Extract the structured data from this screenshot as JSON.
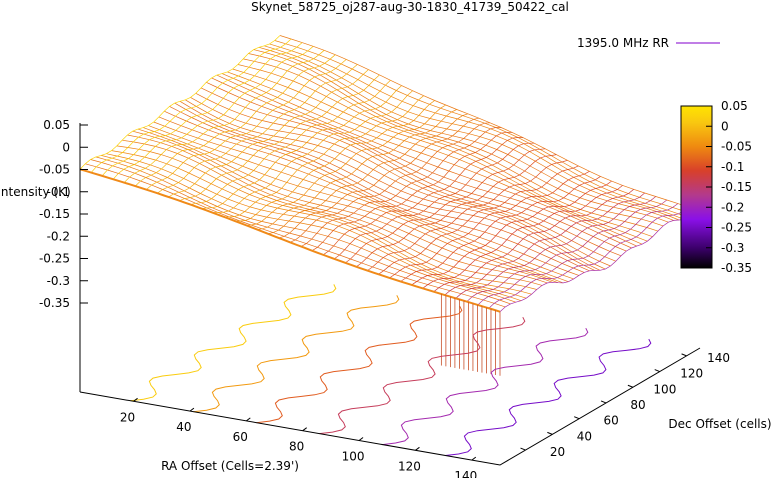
{
  "chart_data": {
    "type": "surface",
    "title": "Skynet_58725_oj287-aug-30-1830_41739_50422_cal",
    "zlabel": "Intensity (K)",
    "xlabel": "RA Offset (Cells=2.39')",
    "ylabel": "Dec Offset (cells)",
    "legend": {
      "label": "1395.0 MHz RR",
      "color": "#9b30d8",
      "placement": "top-right"
    },
    "z_ticks": [
      "0.05",
      "0",
      "-0.05",
      "-0.1",
      "-0.15",
      "-0.2",
      "-0.25",
      "-0.3",
      "-0.35"
    ],
    "x_ticks": [
      "20",
      "40",
      "60",
      "80",
      "100",
      "120",
      "140"
    ],
    "y_ticks": [
      "20",
      "40",
      "60",
      "80",
      "100",
      "120",
      "140"
    ],
    "colorbar": {
      "ticks": [
        "0.05",
        "0",
        "-0.05",
        "-0.1",
        "-0.15",
        "-0.2",
        "-0.25",
        "-0.3",
        "-0.35"
      ],
      "range": [
        -0.35,
        0.05
      ],
      "palette": [
        "#000000",
        "#3a0068",
        "#8a10e8",
        "#b33a8c",
        "#d8402a",
        "#ef8a10",
        "#f9c810",
        "#ffe400"
      ]
    },
    "surface": {
      "x_range": [
        1,
        150
      ],
      "y_range": [
        1,
        150
      ],
      "z_range": [
        -0.35,
        0.05
      ],
      "z_corner_xlow_ylow": 0.0,
      "z_corner_xhigh_ylow": -0.16,
      "z_corner_xlow_yhigh": 0.04,
      "z_corner_xhigh_yhigh": -0.2,
      "ridge_along_y_low": -0.16,
      "edge_drop_min": -0.3
    },
    "contour_levels": [
      0.0,
      -0.05,
      -0.1,
      -0.15,
      -0.2,
      -0.25
    ]
  }
}
